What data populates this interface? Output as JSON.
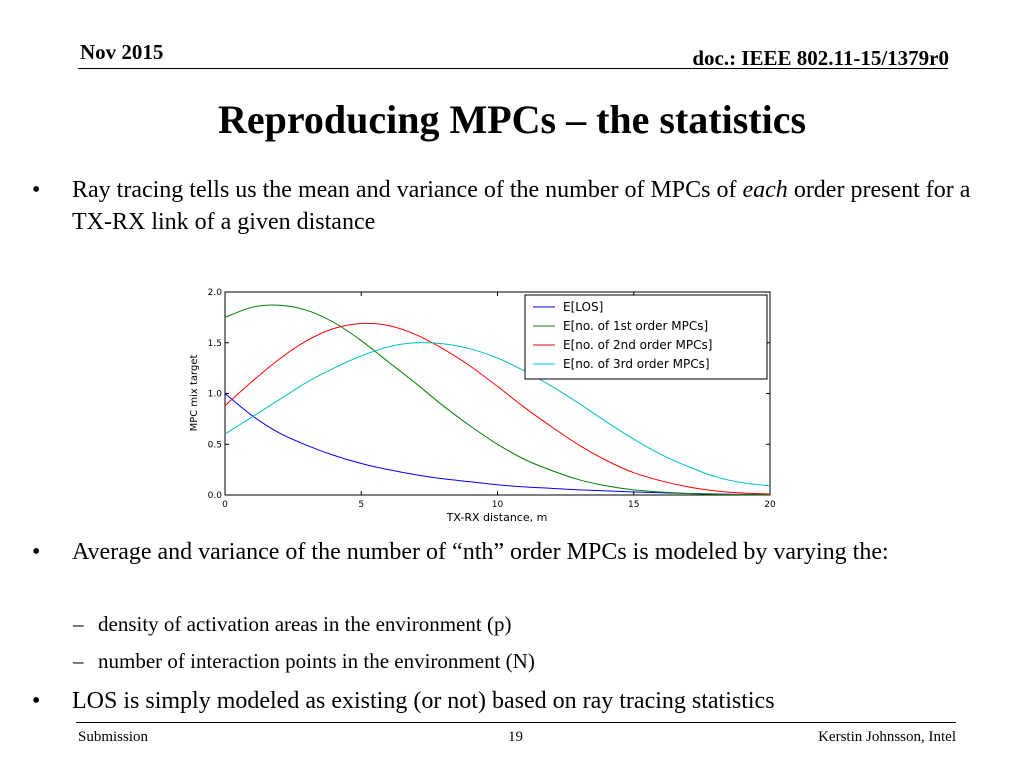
{
  "header": {
    "date": "Nov 2015",
    "doc": "doc.: IEEE 802.11-15/1379r0"
  },
  "title": "Reproducing MPCs – the statistics",
  "bullets": {
    "b1_pre": "Ray tracing tells us the mean and variance of the number of MPCs of ",
    "b1_em": "each",
    "b1_post": " order present for a TX-RX link of a given distance",
    "b2": "Average and variance of the number of “nth” order MPCs is modeled by varying the:",
    "sub1": "density of activation areas in the environment (p)",
    "sub2": "number of interaction points in the environment (N)",
    "b3": "LOS is simply modeled as existing (or not) based on ray tracing statistics",
    "bullet_glyph": "•",
    "dash_glyph": "–"
  },
  "footer": {
    "left": "Submission",
    "page": "19",
    "right": "Kerstin Johnsson, Intel"
  },
  "chart_data": {
    "type": "line",
    "xlabel": "TX-RX distance, m",
    "ylabel": "MPC mix target",
    "xlim": [
      0,
      20
    ],
    "ylim": [
      0,
      2.0
    ],
    "xticks": [
      "0",
      "5",
      "10",
      "15",
      "20"
    ],
    "yticks": [
      "0.0",
      "0.5",
      "1.0",
      "1.5",
      "2.0"
    ],
    "grid": false,
    "legend_position": "top-right",
    "x": [
      0,
      1,
      2,
      3,
      4,
      5,
      6,
      7,
      8,
      9,
      10,
      11,
      12,
      13,
      14,
      15,
      16,
      17,
      18,
      19,
      20
    ],
    "series": [
      {
        "name": "E[LOS]",
        "color": "#0000ff",
        "values": [
          1.0,
          0.78,
          0.61,
          0.49,
          0.39,
          0.31,
          0.25,
          0.2,
          0.16,
          0.13,
          0.1,
          0.08,
          0.065,
          0.05,
          0.04,
          0.03,
          0.022,
          0.015,
          0.01,
          0.006,
          0.005
        ]
      },
      {
        "name": "E[no. of 1st order MPCs]",
        "color": "#008000",
        "values": [
          1.75,
          1.85,
          1.87,
          1.82,
          1.7,
          1.52,
          1.31,
          1.1,
          0.88,
          0.68,
          0.5,
          0.35,
          0.24,
          0.15,
          0.09,
          0.05,
          0.03,
          0.015,
          0.008,
          0.004,
          0.002
        ]
      },
      {
        "name": "E[no. of 2nd order MPCs]",
        "color": "#ff0000",
        "values": [
          0.88,
          1.12,
          1.34,
          1.52,
          1.64,
          1.69,
          1.67,
          1.58,
          1.44,
          1.27,
          1.07,
          0.86,
          0.67,
          0.49,
          0.34,
          0.22,
          0.14,
          0.08,
          0.04,
          0.02,
          0.01
        ]
      },
      {
        "name": "E[no. of 3rd order MPCs]",
        "color": "#00bfbf",
        "values": [
          0.6,
          0.77,
          0.94,
          1.11,
          1.25,
          1.37,
          1.46,
          1.5,
          1.49,
          1.44,
          1.35,
          1.22,
          1.07,
          0.9,
          0.72,
          0.55,
          0.4,
          0.28,
          0.18,
          0.12,
          0.09
        ]
      }
    ]
  }
}
